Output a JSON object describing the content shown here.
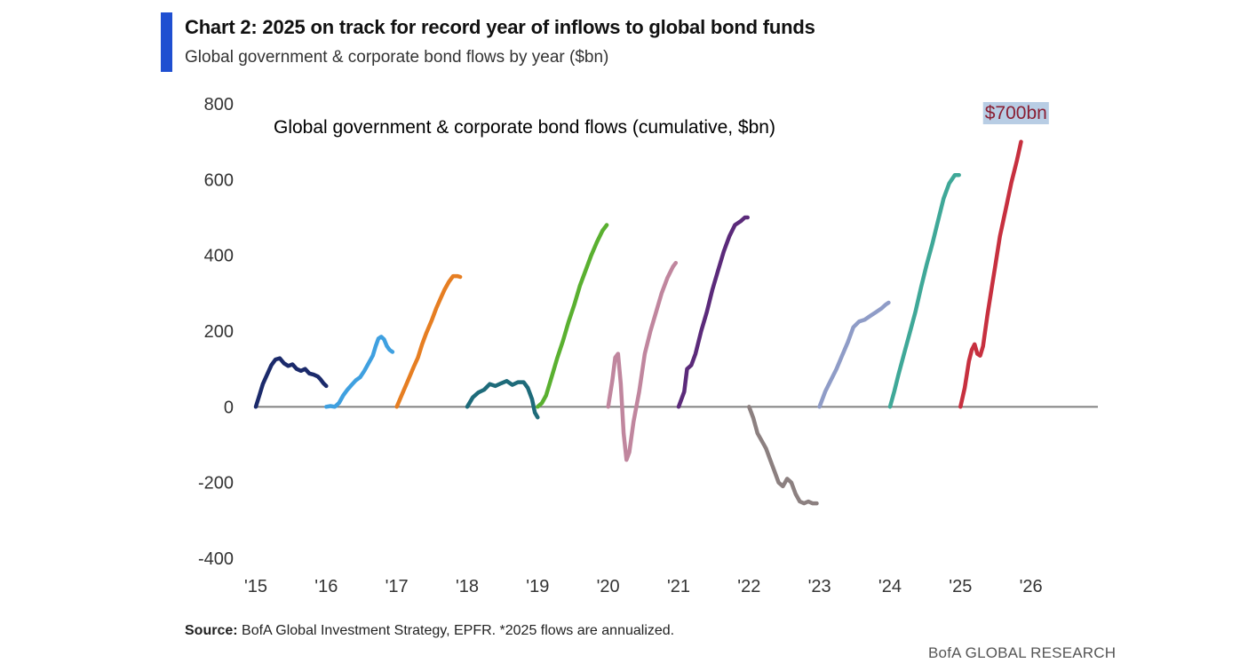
{
  "header": {
    "title": "Chart 2: 2025 on track for record year of inflows to global bond funds",
    "subtitle": "Global government & corporate bond flows by year ($bn)"
  },
  "footer": {
    "source_label": "Source:",
    "source_text": "BofA Global Investment Strategy, EPFR. *2025 flows are annualized.",
    "brand": "BofA GLOBAL RESEARCH"
  },
  "colors": {
    "accent": "#1f4fd1",
    "axis": "#808080",
    "annotation_bg": "#b8cde4",
    "annotation_text": "#8a1f33"
  },
  "chart_data": {
    "type": "line",
    "title": "Global government & corporate bond flows (cumulative, $bn)",
    "xlabel": "",
    "ylabel": "",
    "xlim": [
      2015,
      2026.95
    ],
    "ylim": [
      -400,
      800
    ],
    "y_ticks": [
      800,
      600,
      400,
      200,
      0,
      -200,
      -400
    ],
    "y_tick_labels": [
      "800",
      "600",
      "400",
      "200",
      "0",
      "-200",
      "-400"
    ],
    "x_ticks": [
      2015,
      2016,
      2017,
      2018,
      2019,
      2020,
      2021,
      2022,
      2023,
      2024,
      2025,
      2026
    ],
    "x_tick_labels": [
      "'15",
      "'16",
      "'17",
      "'18",
      "'19",
      "'20",
      "'21",
      "'22",
      "'23",
      "'24",
      "'25",
      "'26"
    ],
    "annotation": {
      "text": "$700bn",
      "x": 2025.85,
      "y": 700
    },
    "series": [
      {
        "name": "2015",
        "color": "#1b2a6b",
        "points": [
          [
            0,
            0
          ],
          [
            0.05,
            30
          ],
          [
            0.1,
            60
          ],
          [
            0.16,
            85
          ],
          [
            0.22,
            110
          ],
          [
            0.28,
            125
          ],
          [
            0.34,
            128
          ],
          [
            0.4,
            115
          ],
          [
            0.46,
            108
          ],
          [
            0.52,
            112
          ],
          [
            0.58,
            100
          ],
          [
            0.64,
            95
          ],
          [
            0.7,
            100
          ],
          [
            0.76,
            88
          ],
          [
            0.82,
            85
          ],
          [
            0.88,
            80
          ],
          [
            0.92,
            72
          ],
          [
            0.96,
            62
          ],
          [
            1.0,
            55
          ]
        ]
      },
      {
        "name": "2016",
        "color": "#3fa0e0",
        "points": [
          [
            0,
            0
          ],
          [
            0.06,
            2
          ],
          [
            0.12,
            0
          ],
          [
            0.18,
            10
          ],
          [
            0.24,
            30
          ],
          [
            0.3,
            45
          ],
          [
            0.36,
            58
          ],
          [
            0.42,
            70
          ],
          [
            0.48,
            78
          ],
          [
            0.54,
            95
          ],
          [
            0.6,
            115
          ],
          [
            0.66,
            135
          ],
          [
            0.7,
            160
          ],
          [
            0.74,
            180
          ],
          [
            0.78,
            185
          ],
          [
            0.82,
            178
          ],
          [
            0.86,
            160
          ],
          [
            0.9,
            150
          ],
          [
            0.94,
            145
          ]
        ]
      },
      {
        "name": "2017",
        "color": "#e67e22",
        "points": [
          [
            0,
            0
          ],
          [
            0.08,
            35
          ],
          [
            0.16,
            70
          ],
          [
            0.24,
            105
          ],
          [
            0.3,
            130
          ],
          [
            0.36,
            165
          ],
          [
            0.42,
            195
          ],
          [
            0.5,
            230
          ],
          [
            0.56,
            260
          ],
          [
            0.62,
            285
          ],
          [
            0.68,
            310
          ],
          [
            0.74,
            330
          ],
          [
            0.8,
            345
          ],
          [
            0.86,
            345
          ],
          [
            0.9,
            343
          ]
        ]
      },
      {
        "name": "2018",
        "color": "#1e6b7a",
        "points": [
          [
            0,
            0
          ],
          [
            0.08,
            25
          ],
          [
            0.16,
            38
          ],
          [
            0.24,
            45
          ],
          [
            0.32,
            60
          ],
          [
            0.4,
            55
          ],
          [
            0.48,
            62
          ],
          [
            0.56,
            68
          ],
          [
            0.64,
            58
          ],
          [
            0.72,
            65
          ],
          [
            0.8,
            65
          ],
          [
            0.86,
            50
          ],
          [
            0.92,
            20
          ],
          [
            0.96,
            -15
          ],
          [
            1.0,
            -28
          ]
        ]
      },
      {
        "name": "2019",
        "color": "#5ab030",
        "points": [
          [
            0,
            0
          ],
          [
            0.06,
            10
          ],
          [
            0.12,
            30
          ],
          [
            0.2,
            80
          ],
          [
            0.28,
            130
          ],
          [
            0.36,
            175
          ],
          [
            0.44,
            225
          ],
          [
            0.52,
            270
          ],
          [
            0.6,
            320
          ],
          [
            0.68,
            360
          ],
          [
            0.76,
            400
          ],
          [
            0.84,
            435
          ],
          [
            0.92,
            465
          ],
          [
            0.98,
            480
          ]
        ]
      },
      {
        "name": "2020",
        "color": "#c0869e",
        "points": [
          [
            0,
            0
          ],
          [
            0.06,
            70
          ],
          [
            0.1,
            130
          ],
          [
            0.14,
            140
          ],
          [
            0.18,
            60
          ],
          [
            0.22,
            -70
          ],
          [
            0.26,
            -140
          ],
          [
            0.3,
            -120
          ],
          [
            0.36,
            -40
          ],
          [
            0.44,
            40
          ],
          [
            0.52,
            140
          ],
          [
            0.6,
            200
          ],
          [
            0.68,
            250
          ],
          [
            0.76,
            300
          ],
          [
            0.84,
            340
          ],
          [
            0.92,
            370
          ],
          [
            0.96,
            380
          ]
        ]
      },
      {
        "name": "2021",
        "color": "#5b2a7a",
        "points": [
          [
            0,
            0
          ],
          [
            0.08,
            40
          ],
          [
            0.12,
            100
          ],
          [
            0.18,
            110
          ],
          [
            0.24,
            140
          ],
          [
            0.32,
            200
          ],
          [
            0.4,
            250
          ],
          [
            0.48,
            310
          ],
          [
            0.56,
            360
          ],
          [
            0.64,
            410
          ],
          [
            0.72,
            450
          ],
          [
            0.8,
            480
          ],
          [
            0.88,
            490
          ],
          [
            0.94,
            500
          ],
          [
            0.98,
            500
          ]
        ]
      },
      {
        "name": "2022",
        "color": "#8c8080",
        "points": [
          [
            0,
            0
          ],
          [
            0.06,
            -30
          ],
          [
            0.12,
            -70
          ],
          [
            0.18,
            -90
          ],
          [
            0.24,
            -110
          ],
          [
            0.3,
            -140
          ],
          [
            0.36,
            -170
          ],
          [
            0.42,
            -200
          ],
          [
            0.48,
            -210
          ],
          [
            0.54,
            -190
          ],
          [
            0.6,
            -200
          ],
          [
            0.66,
            -230
          ],
          [
            0.72,
            -250
          ],
          [
            0.78,
            -255
          ],
          [
            0.84,
            -250
          ],
          [
            0.9,
            -255
          ],
          [
            0.96,
            -255
          ]
        ]
      },
      {
        "name": "2023",
        "color": "#8f9cc7",
        "points": [
          [
            0,
            0
          ],
          [
            0.08,
            40
          ],
          [
            0.16,
            70
          ],
          [
            0.24,
            100
          ],
          [
            0.32,
            135
          ],
          [
            0.4,
            170
          ],
          [
            0.48,
            210
          ],
          [
            0.56,
            225
          ],
          [
            0.64,
            230
          ],
          [
            0.72,
            240
          ],
          [
            0.8,
            250
          ],
          [
            0.88,
            260
          ],
          [
            0.94,
            270
          ],
          [
            0.98,
            275
          ]
        ]
      },
      {
        "name": "2024",
        "color": "#3fa898",
        "points": [
          [
            0,
            0
          ],
          [
            0.06,
            40
          ],
          [
            0.12,
            85
          ],
          [
            0.2,
            140
          ],
          [
            0.28,
            195
          ],
          [
            0.36,
            250
          ],
          [
            0.44,
            315
          ],
          [
            0.52,
            375
          ],
          [
            0.6,
            430
          ],
          [
            0.68,
            490
          ],
          [
            0.76,
            550
          ],
          [
            0.84,
            590
          ],
          [
            0.92,
            612
          ],
          [
            0.98,
            612
          ]
        ]
      },
      {
        "name": "2025",
        "color": "#c7303f",
        "points": [
          [
            0,
            0
          ],
          [
            0.06,
            50
          ],
          [
            0.12,
            120
          ],
          [
            0.16,
            150
          ],
          [
            0.2,
            165
          ],
          [
            0.24,
            140
          ],
          [
            0.28,
            135
          ],
          [
            0.32,
            160
          ],
          [
            0.38,
            240
          ],
          [
            0.44,
            310
          ],
          [
            0.5,
            380
          ],
          [
            0.56,
            450
          ],
          [
            0.64,
            520
          ],
          [
            0.72,
            590
          ],
          [
            0.8,
            650
          ],
          [
            0.86,
            700
          ]
        ]
      }
    ]
  }
}
